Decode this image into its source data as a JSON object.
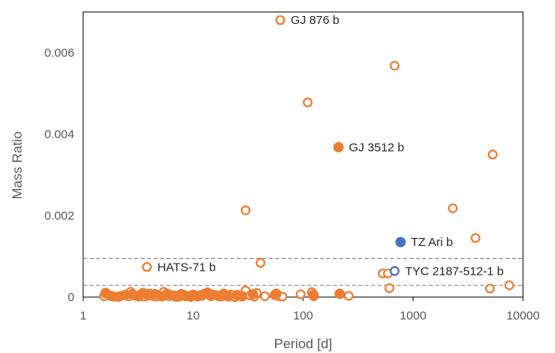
{
  "chart_data": {
    "type": "scatter",
    "xlabel": "Period [d]",
    "ylabel": "Mass Ratio",
    "xscale": "log",
    "xlim": [
      1,
      10000
    ],
    "ylim": [
      0,
      0.007
    ],
    "x_ticks": [
      "1",
      "10",
      "100",
      "1000",
      "10000"
    ],
    "y_ticks": [
      "0",
      "0.002",
      "0.004",
      "0.006"
    ],
    "grid": false,
    "reference_lines": [
      {
        "y": 0.00095,
        "style": "dashed"
      },
      {
        "y": 0.00029,
        "style": "dashed"
      }
    ],
    "colors": {
      "orange": "#ed7d31",
      "blue": "#4472c4"
    },
    "series": [
      {
        "marker": "open-circle",
        "color": "#ed7d31",
        "points": [
          [
            62,
            0.0068
          ],
          [
            680,
            0.00568
          ],
          [
            110,
            0.00478
          ],
          [
            5300,
            0.0035
          ],
          [
            2300,
            0.00218
          ],
          [
            30,
            0.00213
          ],
          [
            3700,
            0.00145
          ],
          [
            41,
            0.00084
          ],
          [
            3.8,
            0.00074
          ],
          [
            680,
            0.00064
          ],
          [
            530,
            0.00058
          ],
          [
            590,
            0.00058
          ],
          [
            7500,
            0.00029
          ],
          [
            5000,
            0.00021
          ],
          [
            610,
            0.00022
          ],
          [
            1.55,
            2e-05
          ],
          [
            1.6,
            9e-05
          ],
          [
            1.9,
            1e-05
          ],
          [
            2.2,
            3e-05
          ],
          [
            2.6,
            2e-05
          ],
          [
            2.7,
            0.00013
          ],
          [
            3.0,
            3e-05
          ],
          [
            3.3,
            6e-05
          ],
          [
            3.6,
            1e-05
          ],
          [
            4.0,
            9e-05
          ],
          [
            4.3,
            3e-05
          ],
          [
            4.6,
            1e-05
          ],
          [
            5.0,
            5e-05
          ],
          [
            5.4,
            0.00013
          ],
          [
            6.0,
            2e-05
          ],
          [
            6.8,
            4e-05
          ],
          [
            7.5,
            1e-05
          ],
          [
            8.2,
            6e-05
          ],
          [
            9.0,
            2e-05
          ],
          [
            10.2,
            4e-05
          ],
          [
            11.0,
            1e-05
          ],
          [
            12.0,
            3e-05
          ],
          [
            13.0,
            8e-05
          ],
          [
            14.5,
            2e-05
          ],
          [
            16.0,
            5e-05
          ],
          [
            18.0,
            1e-05
          ],
          [
            20.0,
            3e-05
          ],
          [
            22.0,
            6e-05
          ],
          [
            24.0,
            0.0
          ],
          [
            26.0,
            3e-05
          ],
          [
            30.0,
            0.00016
          ],
          [
            33.0,
            4e-05
          ],
          [
            36.0,
            1e-05
          ],
          [
            38.0,
            0.0001
          ],
          [
            45.0,
            2e-05
          ],
          [
            55.0,
            5e-05
          ],
          [
            60.0,
            2e-05
          ],
          [
            65.0,
            1e-05
          ],
          [
            95.0,
            7e-05
          ],
          [
            120.0,
            0.00012
          ],
          [
            125.0,
            2e-05
          ],
          [
            260.0,
            3e-05
          ]
        ]
      },
      {
        "marker": "filled-circle",
        "color": "#ed7d31",
        "points": [
          [
            1.6,
            0.0001
          ],
          [
            1.8,
            3e-05
          ],
          [
            2.1,
            1e-05
          ],
          [
            2.4,
            5e-05
          ],
          [
            2.8,
            7e-05
          ],
          [
            3.2,
            2e-05
          ],
          [
            3.5,
            0.0001
          ],
          [
            3.9,
            4e-05
          ],
          [
            4.5,
            7e-05
          ],
          [
            5.2,
            2e-05
          ],
          [
            5.8,
            8e-05
          ],
          [
            6.5,
            4e-05
          ],
          [
            7.0,
            1e-05
          ],
          [
            7.8,
            7e-05
          ],
          [
            8.5,
            3e-05
          ],
          [
            9.5,
            1e-05
          ],
          [
            10.0,
            6e-05
          ],
          [
            11.5,
            4e-05
          ],
          [
            12.5,
            7e-05
          ],
          [
            13.5,
            0.00011
          ],
          [
            15.0,
            6e-05
          ],
          [
            17.0,
            3e-05
          ],
          [
            19.0,
            8e-05
          ],
          [
            21.0,
            2e-05
          ],
          [
            25.0,
            5e-05
          ],
          [
            28.0,
            2e-05
          ],
          [
            35.0,
            7e-05
          ],
          [
            57.0,
            8e-05
          ],
          [
            124.0,
            6e-05
          ],
          [
            210.0,
            0.00368
          ],
          [
            215.0,
            8e-05
          ]
        ]
      },
      {
        "marker": "filled-circle",
        "color": "#4472c4",
        "points": [
          [
            770,
            0.00135
          ]
        ]
      },
      {
        "marker": "open-circle",
        "color": "#4472c4",
        "points": [
          [
            680,
            0.00064
          ]
        ]
      }
    ],
    "annotations": [
      {
        "text": "GJ 876 b",
        "x": 62,
        "y": 0.0068
      },
      {
        "text": "GJ 3512 b",
        "x": 210,
        "y": 0.00368
      },
      {
        "text": "TZ Ari b",
        "x": 770,
        "y": 0.00135
      },
      {
        "text": "HATS-71 b",
        "x": 3.8,
        "y": 0.00074
      },
      {
        "text": "TYC 2187-512-1 b",
        "x": 680,
        "y": 0.00064
      }
    ]
  }
}
